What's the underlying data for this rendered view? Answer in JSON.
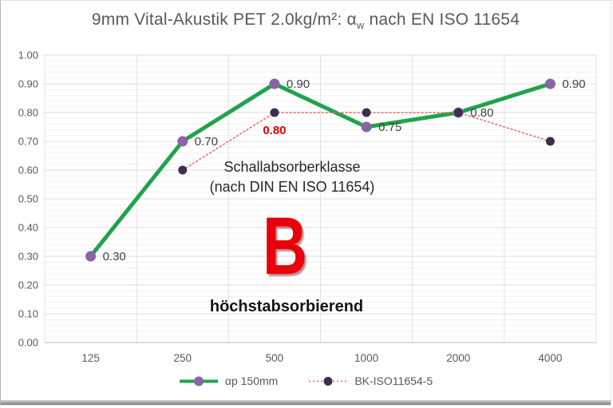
{
  "title": {
    "part1": "9mm Vital-Akustik PET 2.0kg/m²: α",
    "sub": "w",
    "part2": " nach EN ISO 11654"
  },
  "chart_data": {
    "type": "line",
    "categories": [
      "125",
      "250",
      "500",
      "1000",
      "2000",
      "4000"
    ],
    "series": [
      {
        "name": "αp 150mm",
        "values": [
          0.3,
          0.7,
          0.9,
          0.75,
          0.8,
          0.9
        ],
        "labels": [
          "0.30",
          "0.70",
          "0.90",
          "0.75",
          "0.80",
          "0.90"
        ],
        "color": "#1fa34b",
        "marker_color": "#8a63a8",
        "marker_radius": 6.5,
        "line_width": 5,
        "dash": null,
        "label_color": "#404040",
        "label_bold": false,
        "label_dx": 15,
        "label_dy": 5,
        "label_anchor": "start"
      },
      {
        "name": "BK-ISO11654-5",
        "values": [
          null,
          0.6,
          0.8,
          0.8,
          0.8,
          0.7
        ],
        "labels": [
          null,
          null,
          "0.80",
          null,
          null,
          null
        ],
        "color": "#ff5a5a",
        "marker_color": "#3d2e50",
        "marker_radius": 5.5,
        "line_width": 1.4,
        "dash": "2 3",
        "label_color": "#e00000",
        "label_bold": true,
        "label_dx": 0,
        "label_dy": 27,
        "label_anchor": "middle"
      }
    ],
    "ylim": [
      0,
      1.0
    ],
    "y_major": 0.1,
    "y_minor": 0.02,
    "y_ticks": [
      "0.00",
      "0.10",
      "0.20",
      "0.30",
      "0.40",
      "0.50",
      "0.60",
      "0.70",
      "0.80",
      "0.90",
      "1.00"
    ],
    "grid": true,
    "legend_position": "bottom",
    "colors": {
      "major_grid": "#dcdcdc",
      "minor_grid": "#f2f2f2",
      "vertical_grid": "#e2e2e2",
      "axis_line": "#bfbfbf",
      "tick_text": "#595959"
    }
  },
  "annotations": {
    "klasse_line1": "Schallabsorberklasse",
    "klasse_line2": "(nach DIN EN ISO 11654)",
    "class_letter": "B",
    "class_desc": "höchstabsorbierend"
  },
  "legend": {
    "item1": "αp 150mm",
    "item2": "BK-ISO11654-5"
  }
}
